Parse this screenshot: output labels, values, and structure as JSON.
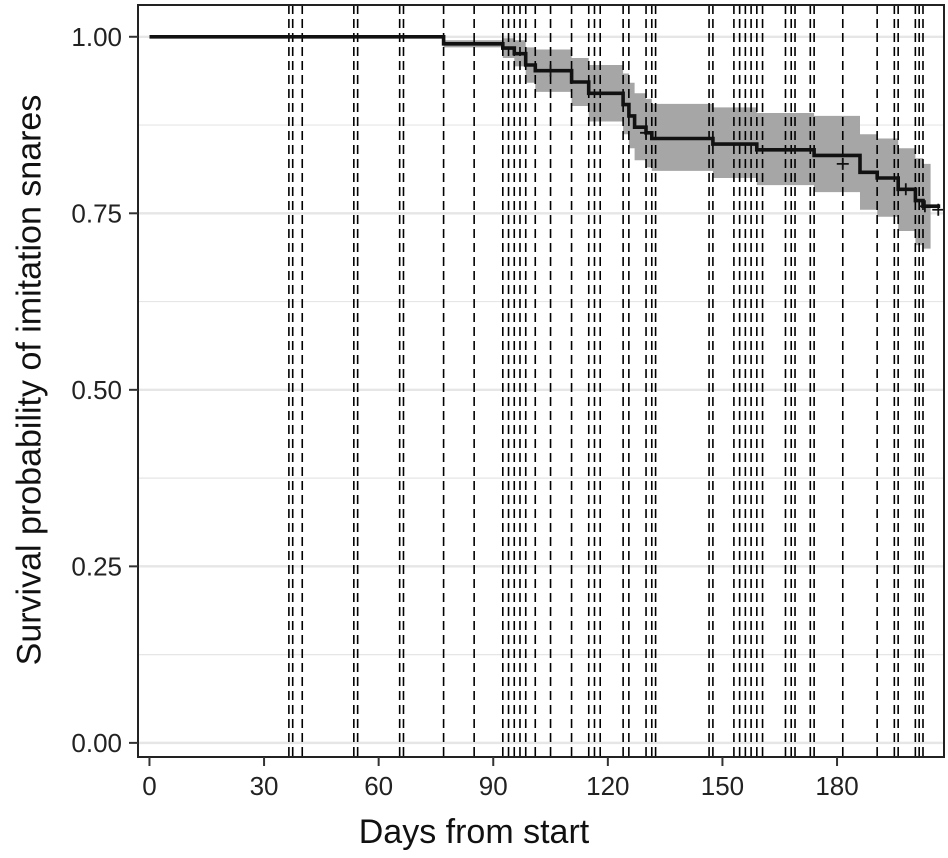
{
  "chart_data": {
    "type": "line",
    "subtype": "kaplan-meier step curve with confidence band",
    "xlabel": "Days from start",
    "ylabel": "Survival probability of imitation snares",
    "xlim": [
      -3,
      208
    ],
    "ylim": [
      -0.02,
      1.045
    ],
    "x_ticks": [
      0,
      30,
      60,
      90,
      120,
      150,
      180
    ],
    "y_ticks": [
      0.0,
      0.25,
      0.5,
      0.75,
      1.0
    ],
    "y_tick_labels": [
      "0.00",
      "0.25",
      "0.50",
      "0.75",
      "1.00"
    ],
    "y_minor_gridlines": [
      0.125,
      0.375,
      0.625,
      0.875
    ],
    "grid": "horizontal",
    "vertical_reference_lines": [
      36.5,
      37.5,
      40,
      53.5,
      54.5,
      65.5,
      66.5,
      77,
      85,
      92.5,
      94,
      95.5,
      97,
      98.5,
      101,
      105,
      110.5,
      115,
      116.5,
      118,
      124,
      125.5,
      130,
      131.5,
      132.5,
      146.5,
      147.5,
      153,
      154.5,
      156,
      157.5,
      159,
      160.5,
      166.5,
      168,
      169,
      173,
      174,
      181.5,
      190.5,
      195,
      196,
      200.5,
      201.5,
      202.5
    ],
    "curve": [
      {
        "x": 0,
        "y": 1.0
      },
      {
        "x": 77,
        "y": 0.99
      },
      {
        "x": 92.5,
        "y": 0.984
      },
      {
        "x": 95.5,
        "y": 0.976
      },
      {
        "x": 98.5,
        "y": 0.96
      },
      {
        "x": 101,
        "y": 0.952
      },
      {
        "x": 110.5,
        "y": 0.936
      },
      {
        "x": 115,
        "y": 0.92
      },
      {
        "x": 124,
        "y": 0.904
      },
      {
        "x": 125.5,
        "y": 0.888
      },
      {
        "x": 127,
        "y": 0.872
      },
      {
        "x": 130,
        "y": 0.864
      },
      {
        "x": 131.5,
        "y": 0.856
      },
      {
        "x": 147.5,
        "y": 0.848
      },
      {
        "x": 159,
        "y": 0.84
      },
      {
        "x": 174,
        "y": 0.832
      },
      {
        "x": 186,
        "y": 0.808
      },
      {
        "x": 190.5,
        "y": 0.8
      },
      {
        "x": 196,
        "y": 0.784
      },
      {
        "x": 200.5,
        "y": 0.768
      },
      {
        "x": 202.5,
        "y": 0.76
      },
      {
        "x": 207,
        "y": 0.76
      }
    ],
    "confidence_band": [
      {
        "x": 0,
        "lower": 1.0,
        "upper": 1.0
      },
      {
        "x": 77,
        "lower": 0.985,
        "upper": 0.995
      },
      {
        "x": 92.5,
        "lower": 0.97,
        "upper": 0.998
      },
      {
        "x": 95.5,
        "lower": 0.958,
        "upper": 0.995
      },
      {
        "x": 98.5,
        "lower": 0.935,
        "upper": 0.985
      },
      {
        "x": 101,
        "lower": 0.922,
        "upper": 0.982
      },
      {
        "x": 110.5,
        "lower": 0.902,
        "upper": 0.97
      },
      {
        "x": 115,
        "lower": 0.88,
        "upper": 0.96
      },
      {
        "x": 124,
        "lower": 0.862,
        "upper": 0.948
      },
      {
        "x": 125.5,
        "lower": 0.842,
        "upper": 0.935
      },
      {
        "x": 127,
        "lower": 0.825,
        "upper": 0.92
      },
      {
        "x": 130,
        "lower": 0.815,
        "upper": 0.912
      },
      {
        "x": 131.5,
        "lower": 0.81,
        "upper": 0.905
      },
      {
        "x": 147.5,
        "lower": 0.8,
        "upper": 0.9
      },
      {
        "x": 159,
        "lower": 0.79,
        "upper": 0.892
      },
      {
        "x": 174,
        "lower": 0.78,
        "upper": 0.888
      },
      {
        "x": 186,
        "lower": 0.755,
        "upper": 0.862
      },
      {
        "x": 190.5,
        "lower": 0.745,
        "upper": 0.856
      },
      {
        "x": 196,
        "lower": 0.725,
        "upper": 0.842
      },
      {
        "x": 200.5,
        "lower": 0.705,
        "upper": 0.828
      },
      {
        "x": 202.5,
        "lower": 0.7,
        "upper": 0.82
      },
      {
        "x": 204.5,
        "lower": 0.7,
        "upper": 0.82
      }
    ],
    "censor_marks": [
      {
        "x": 105,
        "y": 0.952
      },
      {
        "x": 130,
        "y": 0.864
      },
      {
        "x": 181.5,
        "y": 0.82
      },
      {
        "x": 198,
        "y": 0.784
      },
      {
        "x": 203,
        "y": 0.76
      },
      {
        "x": 206.5,
        "y": 0.755
      }
    ],
    "colors": {
      "curve": "#111111",
      "band": "#a6a6a6",
      "reference_lines": "#000000",
      "grid": "#e6e6e6",
      "panel_border": "#222222"
    }
  }
}
